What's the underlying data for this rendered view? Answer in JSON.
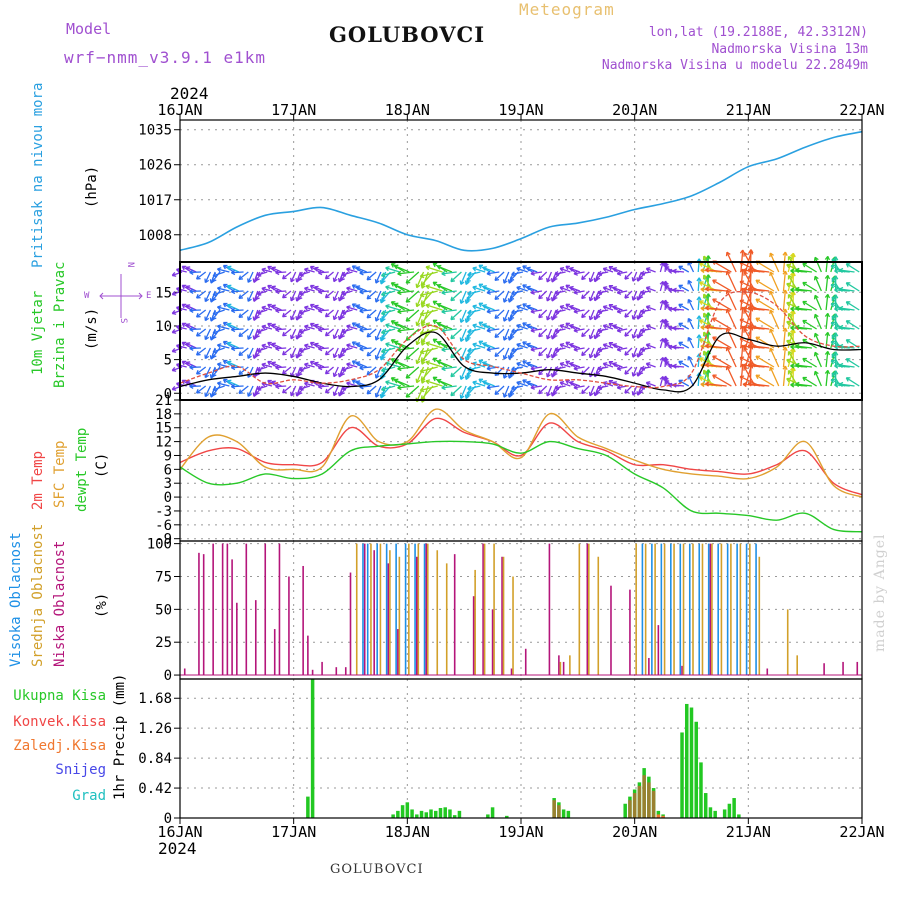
{
  "header": {
    "model_label": "Model",
    "model_value": "wrf−nmm_v3.9.1  e1km",
    "station": "GOLUBOVCI",
    "meteogram": "Meteogram",
    "lonlat": "lon,lat (19.2188E, 42.3312N)",
    "elevation": "Nadmorska Visina 13m",
    "model_elevation": "Nadmorska Visina u modelu 22.2849m",
    "footer_station": "GOLUBOVCI",
    "watermark": "made by Angel"
  },
  "colors": {
    "pressure": "#2aa0e0",
    "temp2m": "#f04646",
    "sfc": "#e0a030",
    "dew": "#28c828",
    "cloud_high": "#1e90e6",
    "cloud_mid": "#d2a02a",
    "cloud_low": "#b4157a",
    "precip_total": "#22c822",
    "precip_conv": "#f04646",
    "precip_frozen": "#f07830",
    "snow": "#4848e8",
    "hail": "#20c0c0",
    "wind_calm": "#9a1ad8",
    "header_purple": "#a050d0",
    "meteogram_gold": "#e8c070"
  },
  "chart_data": [
    {
      "type": "line",
      "id": "pressure",
      "ylabel_left": "Pritisak na nivou mora",
      "ylabel_unit": "(hPa)",
      "yticks": [
        1008,
        1017,
        1026,
        1035
      ],
      "ylim": [
        1001,
        1037.5
      ],
      "x": [
        0,
        6,
        12,
        18,
        24,
        30,
        36,
        42,
        48,
        54,
        60,
        66,
        72,
        78,
        84,
        90,
        96,
        102,
        108,
        114,
        120,
        126,
        132,
        138,
        144
      ],
      "series": [
        {
          "key": "pressure",
          "values": [
            1004,
            1006,
            1010,
            1013,
            1014,
            1015,
            1013,
            1011,
            1008,
            1006.5,
            1004,
            1004.5,
            1007,
            1010,
            1011,
            1012.5,
            1014.5,
            1016,
            1018,
            1021.5,
            1025.5,
            1027.5,
            1030.5,
            1033,
            1034.5
          ]
        }
      ]
    },
    {
      "type": "line",
      "id": "wind",
      "ylabel_left_1": "10m Vjetar",
      "ylabel_left_2": "Brzina i Pravac",
      "ylabel_unit": "(m/s)",
      "compass_n": "N",
      "compass_w": "W",
      "compass_e": "E",
      "compass_s": "S",
      "yticks": [
        0,
        5,
        10,
        15
      ],
      "ylim": [
        -1,
        19.5
      ],
      "x": [
        0,
        6,
        12,
        18,
        24,
        30,
        36,
        42,
        48,
        54,
        60,
        66,
        72,
        78,
        84,
        90,
        96,
        102,
        108,
        114,
        120,
        126,
        132,
        138,
        144
      ],
      "series": [
        {
          "key": "speed",
          "values": [
            1,
            2,
            2.5,
            3,
            2.5,
            1.5,
            1,
            2,
            7,
            9,
            4,
            3,
            3,
            3.5,
            3,
            2.5,
            1.5,
            0.5,
            1,
            8.5,
            8,
            7,
            7.5,
            6.5,
            6.5
          ]
        },
        {
          "key": "gust",
          "values": [
            1.5,
            3,
            4,
            1.5,
            2,
            1.5,
            2,
            3.5,
            8,
            10,
            5,
            4,
            3,
            2,
            2,
            1.5,
            1,
            1,
            3,
            13.5,
            15,
            13,
            8.5,
            7,
            7
          ]
        }
      ]
    },
    {
      "type": "line",
      "id": "temperature",
      "ylabel_left_1": "2m Temp",
      "ylabel_left_2": "SFC Temp",
      "ylabel_left_3": "dewpt Temp",
      "ylabel_unit": "(C)",
      "yticks": [
        -9,
        -6,
        -3,
        0,
        3,
        6,
        9,
        12,
        15,
        18,
        21
      ],
      "ylim": [
        -9.5,
        21
      ],
      "x": [
        0,
        6,
        12,
        18,
        24,
        30,
        36,
        42,
        48,
        54,
        60,
        66,
        72,
        78,
        84,
        90,
        96,
        102,
        108,
        114,
        120,
        126,
        132,
        138,
        144
      ],
      "series": [
        {
          "key": "temp2m",
          "values": [
            7.5,
            10,
            10.5,
            7.5,
            7,
            7.5,
            15,
            11,
            11.5,
            17,
            14,
            12,
            9,
            16,
            12,
            10,
            7,
            7,
            6,
            5.5,
            5,
            7,
            10,
            3,
            0.5
          ]
        },
        {
          "key": "sfc",
          "values": [
            6,
            13,
            12,
            6.5,
            6,
            6.5,
            17.5,
            12,
            12,
            19,
            14.5,
            12,
            8.5,
            18,
            13,
            10.5,
            8,
            6,
            5,
            4.5,
            4,
            6.5,
            12,
            2.5,
            0
          ]
        },
        {
          "key": "dew",
          "values": [
            6.5,
            3,
            3,
            5,
            4,
            5,
            10,
            11,
            11.5,
            12,
            12,
            11.5,
            9.5,
            12,
            10.5,
            9,
            5,
            2,
            -3,
            -3.5,
            -4,
            -5,
            -3.5,
            -7,
            -7.5
          ]
        }
      ]
    },
    {
      "type": "bar",
      "id": "clouds",
      "ylabel_left_1": "Visoka Oblacnost",
      "ylabel_left_2": "Srednja Oblacnost",
      "ylabel_left_3": "Niska  Oblacnost",
      "ylabel_unit": "(%)",
      "yticks": [
        0,
        25,
        50,
        75,
        100
      ],
      "ylim": [
        -3,
        102
      ],
      "series": [
        {
          "key": "low",
          "x": [
            1,
            4,
            5,
            7,
            9,
            10,
            11,
            12,
            14,
            16,
            18,
            20,
            21,
            23,
            26,
            27,
            28,
            30,
            33,
            35,
            36,
            39,
            41,
            44,
            46,
            50,
            52,
            58,
            62,
            64,
            66,
            68,
            70,
            73,
            78,
            80,
            81,
            86,
            91,
            95,
            99,
            101,
            106,
            112,
            124,
            136,
            140,
            143
          ],
          "values": [
            5,
            93,
            92,
            100,
            100,
            100,
            88,
            55,
            100,
            57,
            100,
            35,
            100,
            75,
            83,
            30,
            4,
            10,
            6,
            6,
            78,
            100,
            95,
            85,
            35,
            90,
            100,
            92,
            60,
            100,
            50,
            90,
            5,
            20,
            100,
            15,
            10,
            100,
            68,
            65,
            13,
            38,
            7,
            100,
            5,
            9,
            10,
            10
          ]
        },
        {
          "key": "mid",
          "x": [
            37,
            40,
            42,
            44,
            46,
            48,
            50,
            52,
            54,
            56,
            62,
            64,
            66,
            68,
            70,
            80,
            82,
            84,
            86,
            88,
            96,
            98,
            100,
            102,
            104,
            106,
            108,
            110,
            112,
            114,
            116,
            118,
            120,
            122,
            128,
            130
          ],
          "values": [
            100,
            100,
            100,
            95,
            90,
            100,
            100,
            100,
            95,
            85,
            80,
            100,
            100,
            90,
            75,
            10,
            15,
            100,
            100,
            90,
            100,
            100,
            100,
            100,
            100,
            100,
            100,
            100,
            100,
            100,
            100,
            100,
            100,
            90,
            50,
            15
          ]
        },
        {
          "key": "high",
          "x": [
            38,
            39,
            41,
            43,
            45,
            47,
            49,
            51,
            97,
            99,
            101,
            103,
            105,
            107,
            109,
            111,
            113,
            115,
            117,
            119,
            121
          ],
          "values": [
            100,
            100,
            100,
            100,
            100,
            100,
            100,
            100,
            100,
            100,
            100,
            100,
            100,
            100,
            100,
            100,
            100,
            100,
            100,
            100,
            100
          ]
        }
      ]
    },
    {
      "type": "bar",
      "id": "precip",
      "ylabel_left": "1hr Precip (mm)",
      "legend": [
        "Ukupna Kisa",
        "Konvek.Kisa",
        "Zaledj.Kisa",
        "Snijeg",
        "Grad"
      ],
      "yticks": [
        0,
        0.42,
        0.84,
        1.26,
        1.68
      ],
      "ylim": [
        0,
        1.95
      ],
      "series": [
        {
          "key": "total",
          "x": [
            27,
            28,
            45,
            46,
            47,
            48,
            49,
            50,
            51,
            52,
            53,
            54,
            55,
            56,
            57,
            58,
            59,
            65,
            66,
            69,
            79,
            80,
            81,
            82,
            94,
            95,
            96,
            97,
            98,
            99,
            100,
            101,
            102,
            106,
            107,
            108,
            109,
            110,
            111,
            112,
            113,
            115,
            116,
            117,
            118
          ],
          "values": [
            0.3,
            1.95,
            0.05,
            0.1,
            0.18,
            0.22,
            0.12,
            0.05,
            0.1,
            0.08,
            0.12,
            0.1,
            0.14,
            0.15,
            0.12,
            0.04,
            0.1,
            0.05,
            0.15,
            0.03,
            0.28,
            0.22,
            0.12,
            0.1,
            0.2,
            0.3,
            0.4,
            0.5,
            0.7,
            0.58,
            0.42,
            0.1,
            0.05,
            1.2,
            1.6,
            1.55,
            1.35,
            0.78,
            0.35,
            0.15,
            0.1,
            0.12,
            0.2,
            0.28,
            0.05
          ]
        },
        {
          "key": "conv",
          "x": [
            79,
            80,
            95,
            96,
            97,
            98,
            99,
            100
          ],
          "values": [
            0.25,
            0.18,
            0.25,
            0.35,
            0.45,
            0.6,
            0.5,
            0.38
          ]
        },
        {
          "key": "frozen",
          "x": [
            101,
            102
          ],
          "values": [
            0.05,
            0.03
          ]
        }
      ]
    }
  ],
  "xaxis": {
    "year": "2024",
    "labels": [
      "16JAN",
      "17JAN",
      "18JAN",
      "19JAN",
      "20JAN",
      "21JAN",
      "22JAN"
    ]
  }
}
